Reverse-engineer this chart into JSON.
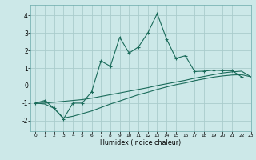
{
  "xlabel": "Humidex (Indice chaleur)",
  "bg_color": "#cce8e8",
  "grid_color": "#aacccc",
  "line_color": "#1a6b5a",
  "xlim": [
    -0.5,
    23
  ],
  "ylim": [
    -2.6,
    4.6
  ],
  "xticks": [
    0,
    1,
    2,
    3,
    4,
    5,
    6,
    7,
    8,
    9,
    10,
    11,
    12,
    13,
    14,
    15,
    16,
    17,
    18,
    19,
    20,
    21,
    22,
    23
  ],
  "yticks": [
    -2,
    -1,
    0,
    1,
    2,
    3,
    4
  ],
  "series1_x": [
    0,
    1,
    2,
    3,
    4,
    5,
    6,
    7,
    8,
    9,
    10,
    11,
    12,
    13,
    14,
    15,
    16,
    17,
    18,
    19,
    20,
    21,
    22,
    23
  ],
  "series1_y": [
    -1.0,
    -0.85,
    -1.3,
    -1.9,
    -1.0,
    -1.0,
    -0.35,
    1.4,
    1.1,
    2.75,
    1.85,
    2.2,
    3.0,
    4.1,
    2.65,
    1.55,
    1.7,
    0.8,
    0.82,
    0.88,
    0.85,
    0.85,
    0.5,
    null
  ],
  "series2_x": [
    0,
    1,
    2,
    3,
    4,
    5,
    6,
    7,
    8,
    9,
    10,
    11,
    12,
    13,
    14,
    15,
    16,
    17,
    18,
    19,
    20,
    21,
    22,
    23
  ],
  "series2_y": [
    -1.0,
    -1.0,
    -0.95,
    -0.9,
    -0.85,
    -0.8,
    -0.72,
    -0.62,
    -0.52,
    -0.42,
    -0.32,
    -0.22,
    -0.12,
    0.0,
    0.1,
    0.2,
    0.3,
    0.42,
    0.52,
    0.62,
    0.72,
    0.78,
    0.82,
    0.5
  ],
  "series3_x": [
    0,
    1,
    2,
    3,
    4,
    5,
    6,
    7,
    8,
    9,
    10,
    11,
    12,
    13,
    14,
    15,
    16,
    17,
    18,
    19,
    20,
    21,
    22,
    23
  ],
  "series3_y": [
    -1.0,
    -1.05,
    -1.3,
    -1.85,
    -1.75,
    -1.6,
    -1.45,
    -1.25,
    -1.05,
    -0.88,
    -0.7,
    -0.52,
    -0.38,
    -0.22,
    -0.08,
    0.05,
    0.15,
    0.28,
    0.38,
    0.48,
    0.55,
    0.6,
    0.62,
    0.5
  ]
}
